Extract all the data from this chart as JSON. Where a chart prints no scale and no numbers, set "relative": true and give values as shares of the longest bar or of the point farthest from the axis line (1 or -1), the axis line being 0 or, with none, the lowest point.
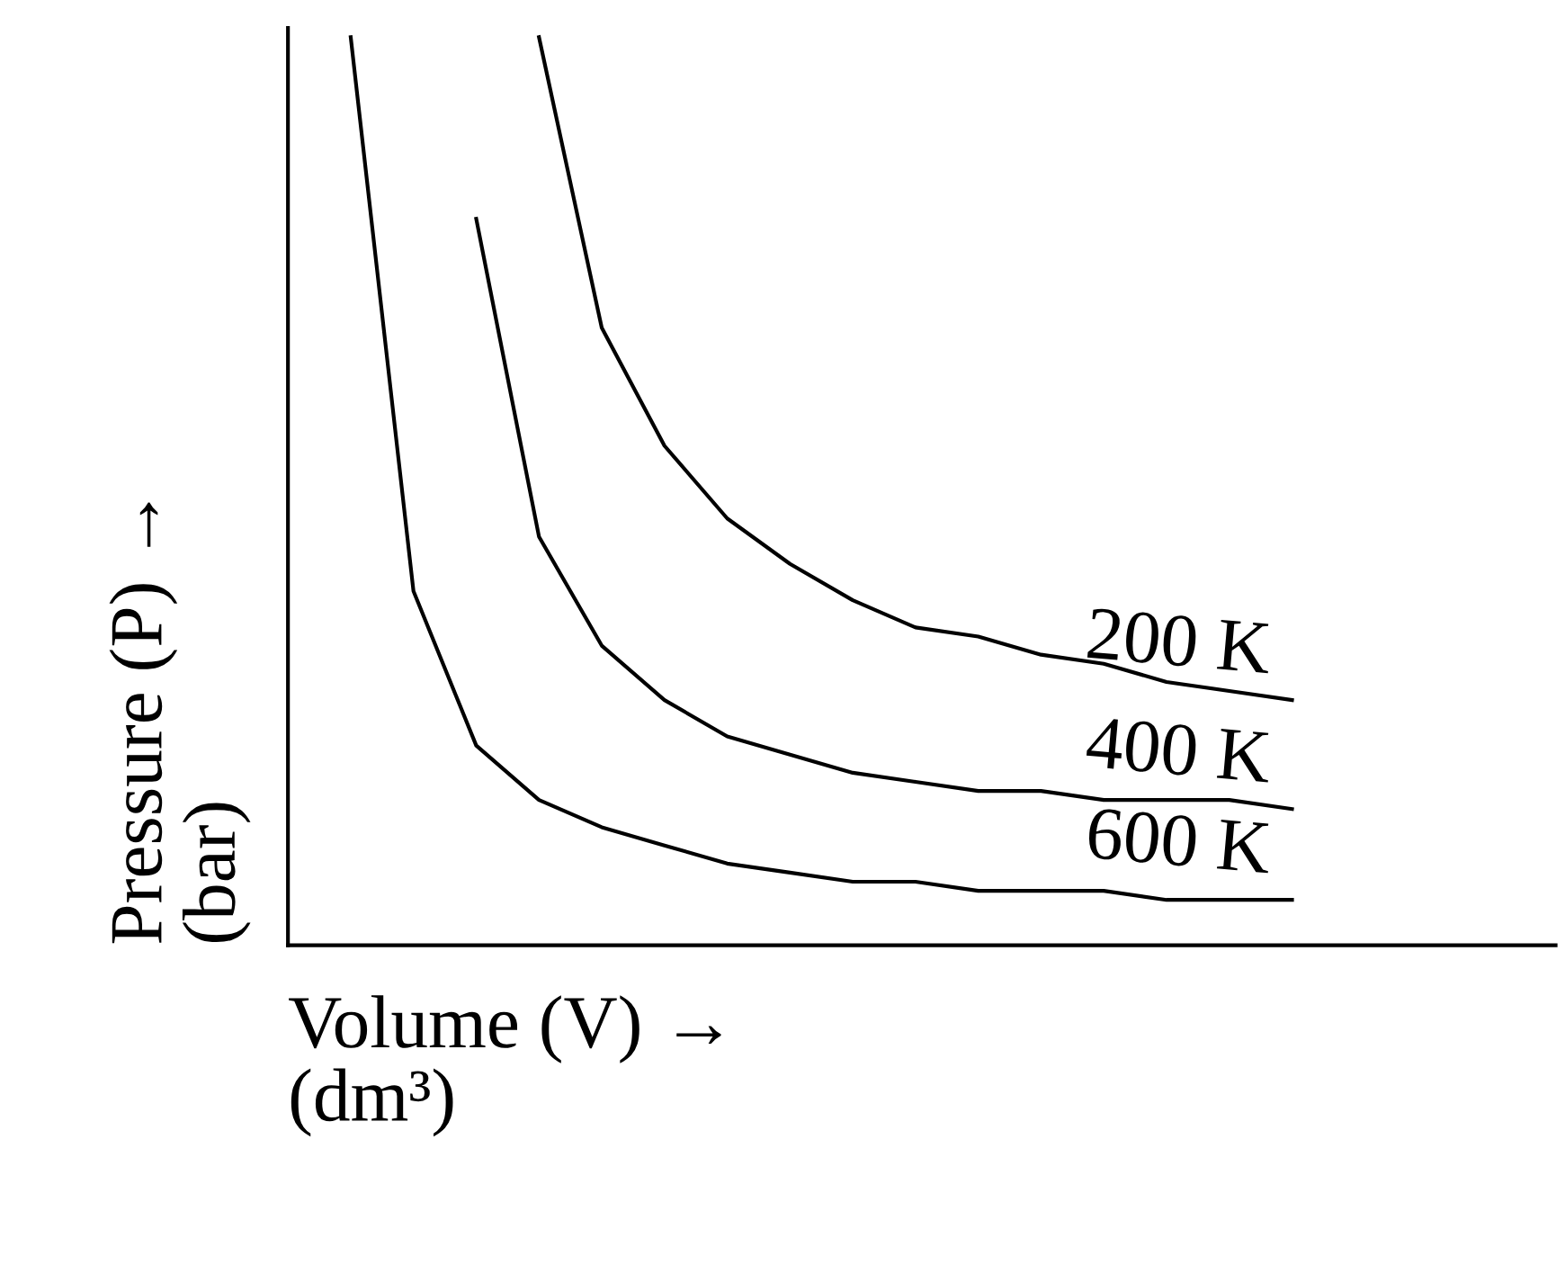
{
  "chart_data": {
    "type": "line",
    "relative": true,
    "xlabel": "Volume (V) →\n(dm³)",
    "ylabel": "Pressure (P) →\n(bar)",
    "legend": false,
    "marker": "none",
    "line_style": "solid",
    "categories": [
      null,
      null,
      null,
      null,
      null,
      null,
      null,
      null,
      null,
      null,
      null,
      null,
      null,
      null,
      null,
      null
    ],
    "series": [
      {
        "name": "200 K",
        "color": "#000000",
        "values": [
          null,
          null,
          null,
          1.0,
          0.68,
          0.55,
          0.47,
          0.42,
          0.38,
          0.35,
          0.34,
          0.32,
          0.31,
          0.29,
          0.28,
          0.27
        ]
      },
      {
        "name": "400 K",
        "color": "#000000",
        "values": [
          null,
          null,
          0.8,
          0.45,
          0.33,
          0.27,
          0.23,
          0.21,
          0.19,
          0.18,
          0.17,
          0.17,
          0.16,
          0.16,
          0.16,
          0.15
        ]
      },
      {
        "name": "600 K",
        "color": "#000000",
        "values": [
          1.0,
          0.39,
          0.22,
          0.16,
          0.13,
          0.11,
          0.09,
          0.08,
          0.07,
          0.07,
          0.06,
          0.06,
          0.06,
          0.05,
          0.05,
          0.05
        ]
      }
    ]
  }
}
